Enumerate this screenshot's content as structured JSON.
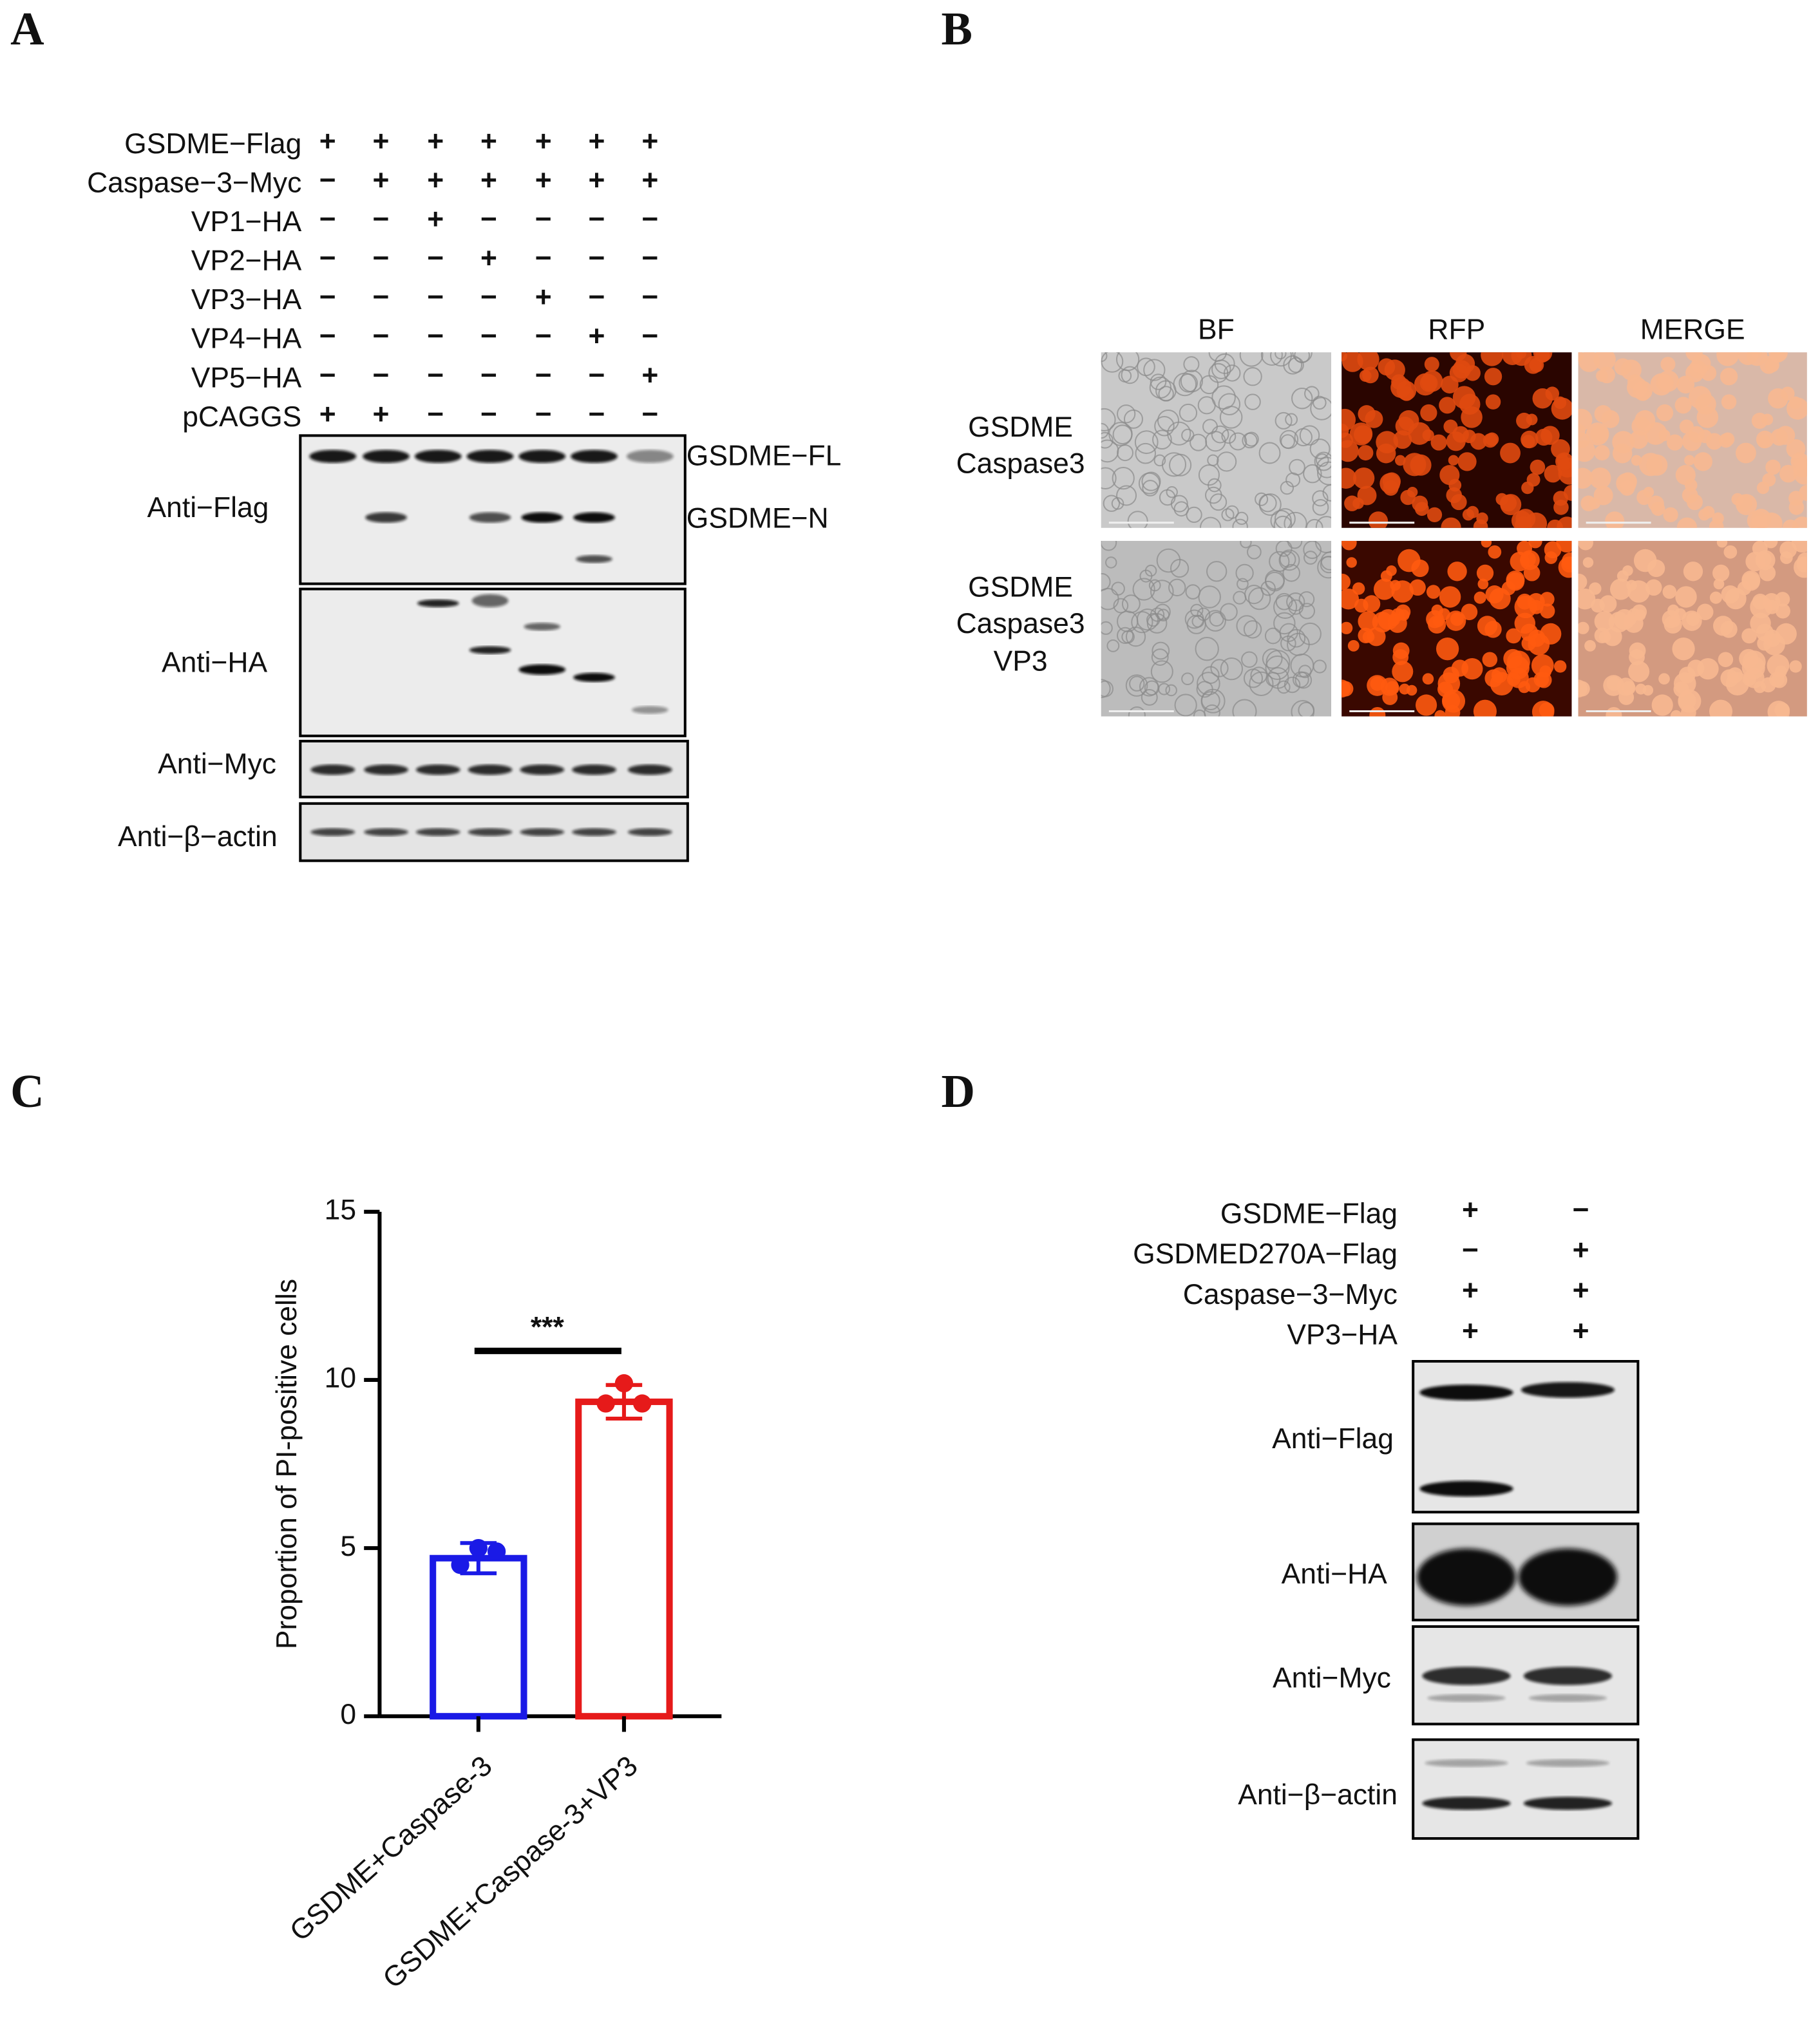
{
  "panel_a": {
    "letter": "A",
    "conditions": [
      {
        "label": "GSDME−Flag",
        "signs": [
          "+",
          "+",
          "+",
          "+",
          "+",
          "+",
          "+"
        ]
      },
      {
        "label": "Caspase−3−Myc",
        "signs": [
          "−",
          "+",
          "+",
          "+",
          "+",
          "+",
          "+"
        ]
      },
      {
        "label": "VP1−HA",
        "signs": [
          "−",
          "−",
          "+",
          "−",
          "−",
          "−",
          "−"
        ]
      },
      {
        "label": "VP2−HA",
        "signs": [
          "−",
          "−",
          "−",
          "+",
          "−",
          "−",
          "−"
        ]
      },
      {
        "label": "VP3−HA",
        "signs": [
          "−",
          "−",
          "−",
          "−",
          "+",
          "−",
          "−"
        ]
      },
      {
        "label": "VP4−HA",
        "signs": [
          "−",
          "−",
          "−",
          "−",
          "−",
          "+",
          "−"
        ]
      },
      {
        "label": "VP5−HA",
        "signs": [
          "−",
          "−",
          "−",
          "−",
          "−",
          "−",
          "+"
        ]
      },
      {
        "label": "pCAGGS",
        "signs": [
          "+",
          "+",
          "−",
          "−",
          "−",
          "−",
          "−"
        ]
      }
    ],
    "blots": [
      "Anti−Flag",
      "Anti−HA",
      "Anti−Myc",
      "Anti−β−actin"
    ],
    "band_labels": [
      "GSDME−FL",
      "GSDME−N"
    ]
  },
  "panel_b": {
    "letter": "B",
    "columns": [
      "BF",
      "RFP",
      "MERGE"
    ],
    "rows": [
      {
        "lines": [
          "GSDME",
          "Caspase3"
        ]
      },
      {
        "lines": [
          "GSDME",
          "Caspase3",
          "VP3"
        ]
      }
    ]
  },
  "panel_c_letter": "C",
  "chart_data": {
    "type": "bar",
    "y_label": "Proportion of PI-positive cells",
    "categories": [
      "GSDME+Caspase-3",
      "GSDME+Caspase-3+VP3"
    ],
    "values": [
      4.7,
      9.35
    ],
    "errors": [
      0.45,
      0.5
    ],
    "points": [
      [
        5.0,
        4.9,
        4.5
      ],
      [
        9.9,
        9.3,
        9.3
      ]
    ],
    "colors": [
      "#1a1ae6",
      "#e61a1a"
    ],
    "ylim": [
      0,
      15
    ],
    "yticks": [
      0,
      5,
      10,
      15
    ],
    "annotation": "***"
  },
  "panel_d": {
    "letter": "D",
    "conditions": [
      {
        "label": "GSDME−Flag",
        "signs": [
          "+",
          "−"
        ]
      },
      {
        "label": "GSDMED270A−Flag",
        "signs": [
          "−",
          "+"
        ]
      },
      {
        "label": "Caspase−3−Myc",
        "signs": [
          "+",
          "+"
        ]
      },
      {
        "label": "VP3−HA",
        "signs": [
          "+",
          "+"
        ]
      }
    ],
    "blots": [
      "Anti−Flag",
      "Anti−HA",
      "Anti−Myc",
      "Anti−β−actin"
    ]
  }
}
